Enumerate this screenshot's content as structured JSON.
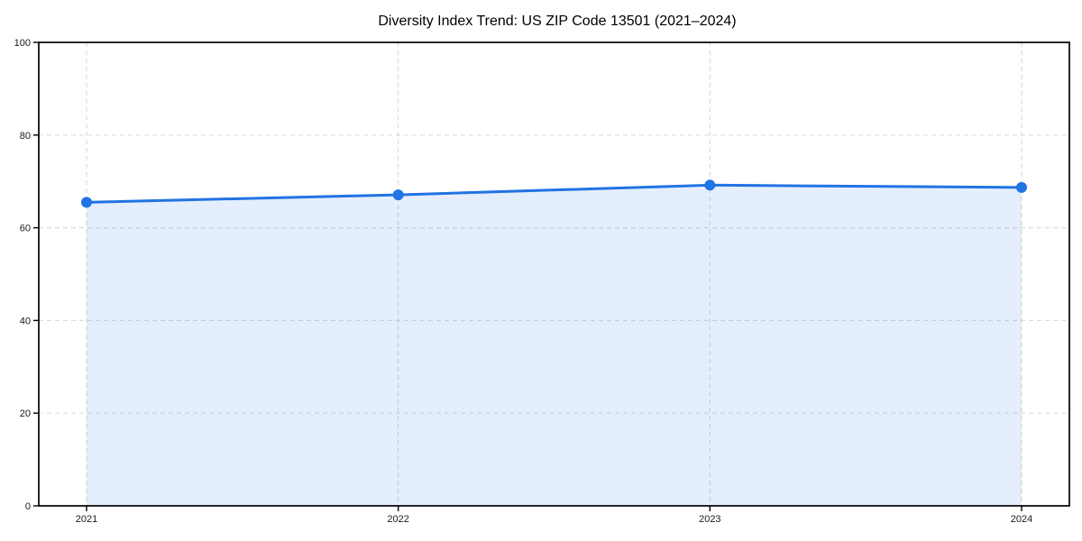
{
  "chart_data": {
    "type": "area",
    "title": "Diversity Index Trend: US ZIP Code 13501 (2021–2024)",
    "x": [
      2021,
      2022,
      2023,
      2024
    ],
    "xticks": [
      "2021",
      "2022",
      "2023",
      "2024"
    ],
    "series": [
      {
        "name": "Diversity Index",
        "values": [
          65.5,
          67.1,
          69.2,
          68.7
        ]
      }
    ],
    "xlabel": "",
    "ylabel": "",
    "ylim": [
      0,
      100
    ],
    "yticks": [
      0,
      20,
      40,
      60,
      80,
      100
    ],
    "grid": "dashed-both-axes",
    "legend": "none",
    "colors": {
      "line": "#2273e3",
      "marker": "#2273e3",
      "fill": "#2273e3",
      "fill_opacity": 0.12,
      "grid": "#d8d8d8",
      "axis": "#000000",
      "tick_label": "#1a1a1a",
      "title": "#000000",
      "background": "#ffffff"
    }
  }
}
